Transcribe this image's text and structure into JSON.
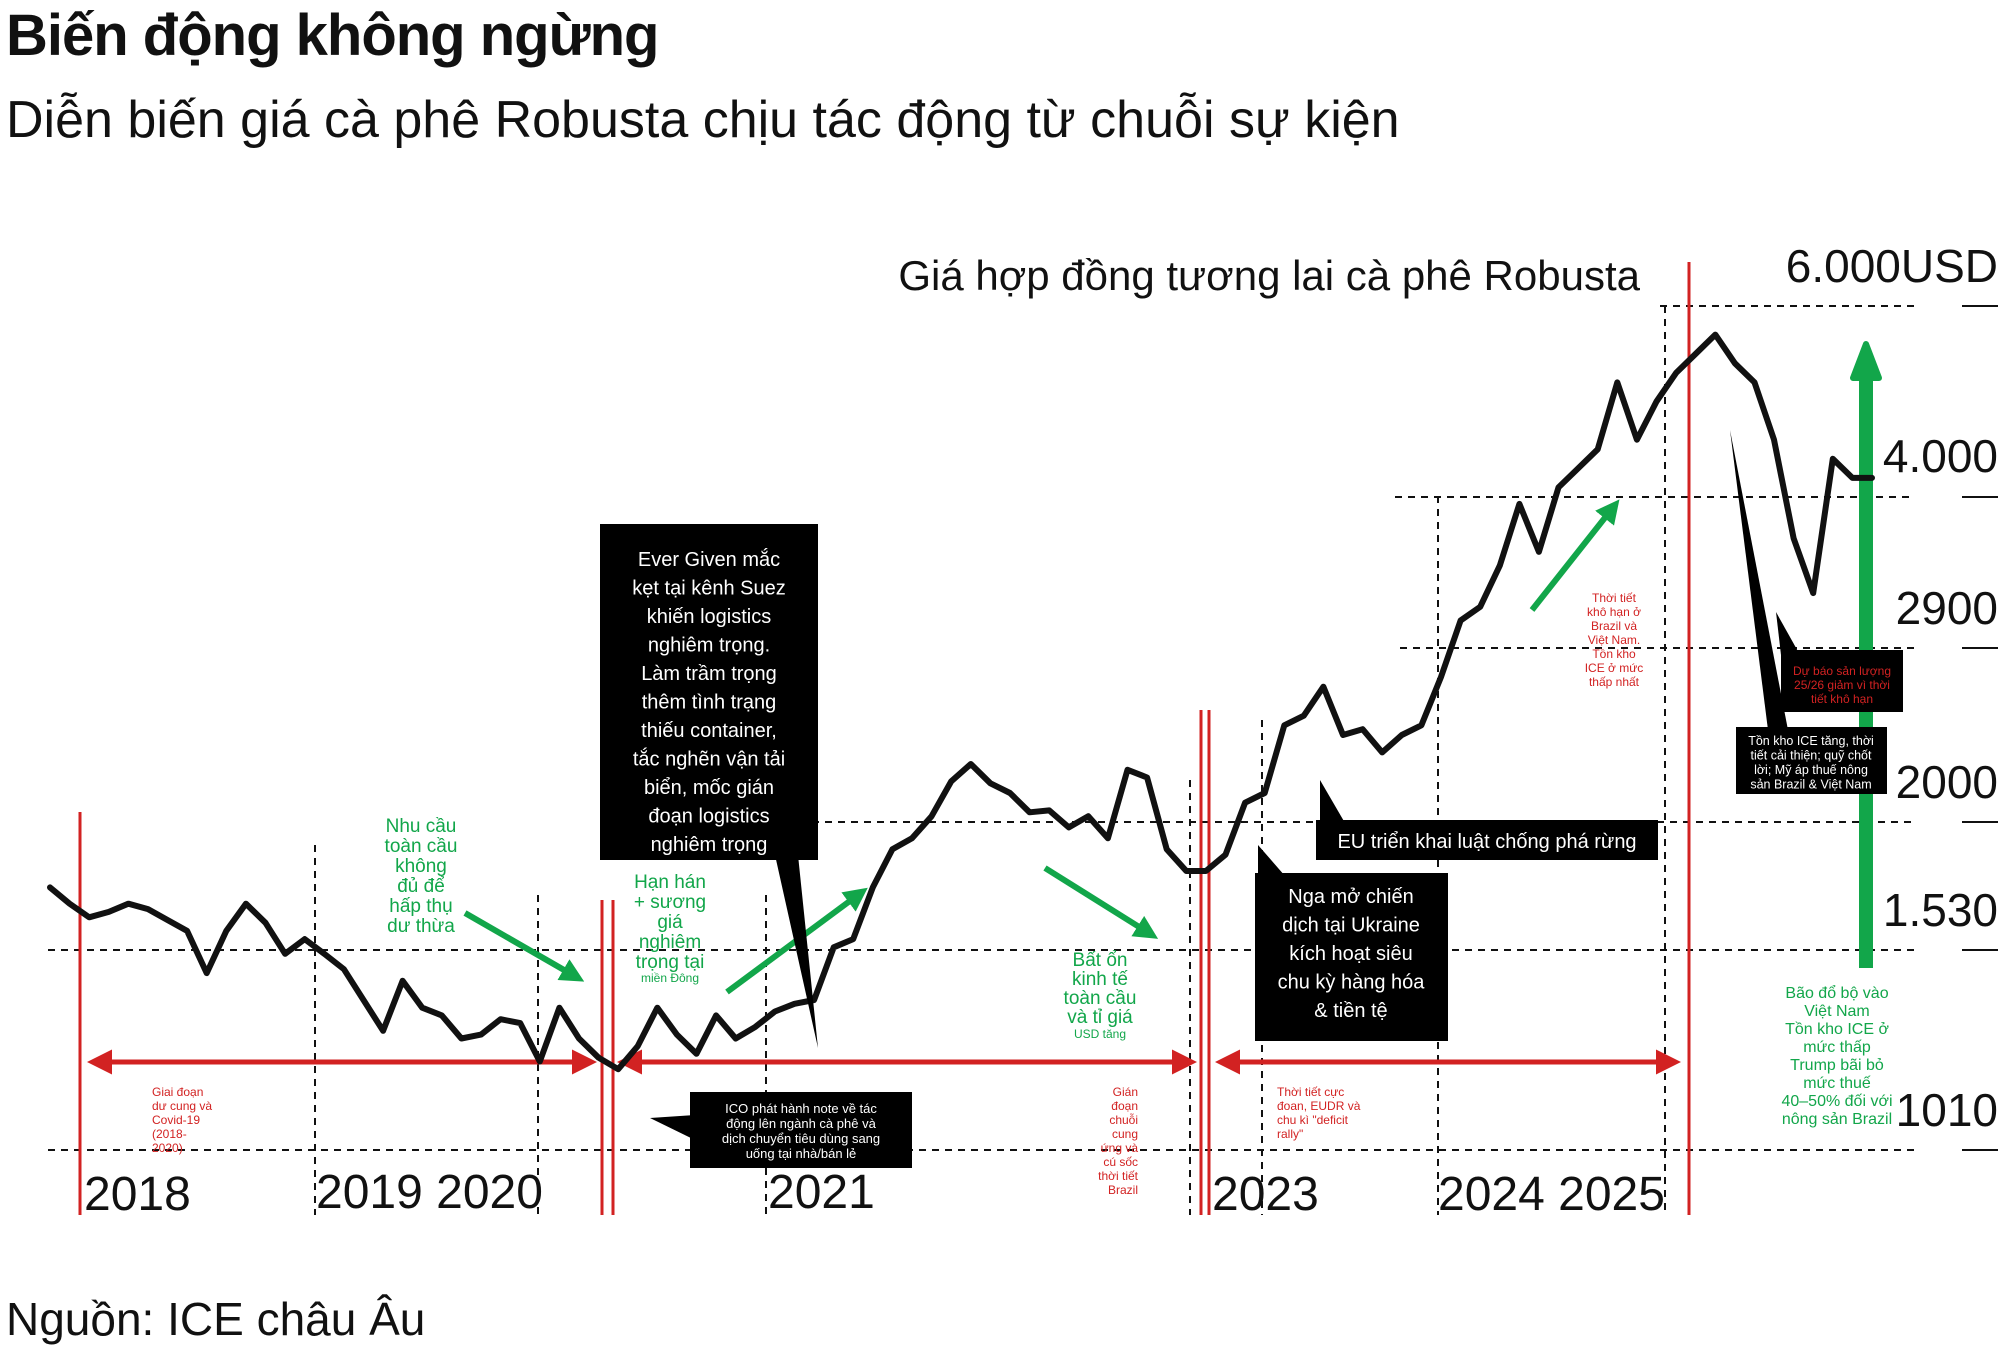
{
  "header": {
    "title": "Biến động không ngừng",
    "subtitle": "Diễn biến giá cà phê Robusta chịu tác động từ chuỗi sự kiện"
  },
  "footer": {
    "source": "Nguồn: ICE châu Âu"
  },
  "colors": {
    "line": "#111111",
    "red": "#d22222",
    "green": "#12a64a",
    "box": "#000000"
  },
  "chart_data": {
    "type": "line",
    "title": "Giá hợp đồng tương lai cà phê Robusta",
    "y_labels": [
      "6.000USD",
      "4.000",
      "2900",
      "2000",
      "1.530",
      "1010"
    ],
    "y_levels": [
      6000,
      4000,
      2900,
      2000,
      1530,
      1010
    ],
    "x_labels": [
      "2018",
      "2019 2020",
      "2021",
      "2023",
      "2024 2025"
    ],
    "x_range": [
      "2018-01",
      "2025-10"
    ],
    "series": [
      {
        "values": [
          [
            "2018-01",
            1760
          ],
          [
            "2018-02",
            1700
          ],
          [
            "2018-03",
            1650
          ],
          [
            "2018-04",
            1670
          ],
          [
            "2018-05",
            1700
          ],
          [
            "2018-06",
            1680
          ],
          [
            "2018-07",
            1640
          ],
          [
            "2018-08",
            1600
          ],
          [
            "2018-09",
            1470
          ],
          [
            "2018-10",
            1600
          ],
          [
            "2018-11",
            1700
          ],
          [
            "2018-12",
            1630
          ],
          [
            "2019-01",
            1520
          ],
          [
            "2019-02",
            1570
          ],
          [
            "2019-03",
            1520
          ],
          [
            "2019-04",
            1480
          ],
          [
            "2019-05",
            1400
          ],
          [
            "2019-06",
            1320
          ],
          [
            "2019-07",
            1450
          ],
          [
            "2019-08",
            1380
          ],
          [
            "2019-09",
            1360
          ],
          [
            "2019-10",
            1300
          ],
          [
            "2019-11",
            1310
          ],
          [
            "2019-12",
            1350
          ],
          [
            "2020-01",
            1340
          ],
          [
            "2020-02",
            1240
          ],
          [
            "2020-03",
            1380
          ],
          [
            "2020-04",
            1300
          ],
          [
            "2020-05",
            1250
          ],
          [
            "2020-06",
            1220
          ],
          [
            "2020-07",
            1280
          ],
          [
            "2020-08",
            1380
          ],
          [
            "2020-09",
            1310
          ],
          [
            "2020-10",
            1260
          ],
          [
            "2020-11",
            1360
          ],
          [
            "2020-12",
            1300
          ],
          [
            "2021-01",
            1330
          ],
          [
            "2021-02",
            1370
          ],
          [
            "2021-03",
            1390
          ],
          [
            "2021-04",
            1400
          ],
          [
            "2021-05",
            1540
          ],
          [
            "2021-06",
            1570
          ],
          [
            "2021-07",
            1760
          ],
          [
            "2021-08",
            1900
          ],
          [
            "2021-09",
            1940
          ],
          [
            "2021-10",
            2030
          ],
          [
            "2021-11",
            2210
          ],
          [
            "2021-12",
            2300
          ],
          [
            "2022-01",
            2200
          ],
          [
            "2022-02",
            2150
          ],
          [
            "2022-03",
            2050
          ],
          [
            "2022-04",
            2060
          ],
          [
            "2022-05",
            1980
          ],
          [
            "2022-06",
            2030
          ],
          [
            "2022-07",
            1940
          ],
          [
            "2022-08",
            2270
          ],
          [
            "2022-09",
            2230
          ],
          [
            "2022-10",
            1900
          ],
          [
            "2022-11",
            1820
          ],
          [
            "2022-12",
            1820
          ],
          [
            "2023-01",
            1880
          ],
          [
            "2023-02",
            2100
          ],
          [
            "2023-03",
            2150
          ],
          [
            "2023-04",
            2500
          ],
          [
            "2023-05",
            2550
          ],
          [
            "2023-06",
            2700
          ],
          [
            "2023-07",
            2450
          ],
          [
            "2023-08",
            2480
          ],
          [
            "2023-09",
            2360
          ],
          [
            "2023-10",
            2450
          ],
          [
            "2023-11",
            2500
          ],
          [
            "2023-12",
            2750
          ],
          [
            "2024-01",
            3100
          ],
          [
            "2024-02",
            3200
          ],
          [
            "2024-03",
            3500
          ],
          [
            "2024-04",
            3950
          ],
          [
            "2024-05",
            3600
          ],
          [
            "2024-06",
            4100
          ],
          [
            "2024-07",
            4300
          ],
          [
            "2024-08",
            4500
          ],
          [
            "2024-09",
            5200
          ],
          [
            "2024-10",
            4600
          ],
          [
            "2024-11",
            5000
          ],
          [
            "2024-12",
            5300
          ],
          [
            "2025-01",
            5500
          ],
          [
            "2025-02",
            5700
          ],
          [
            "2025-03",
            5400
          ],
          [
            "2025-04",
            5200
          ],
          [
            "2025-05",
            4600
          ],
          [
            "2025-06",
            3700
          ],
          [
            "2025-07",
            3300
          ],
          [
            "2025-08",
            4400
          ],
          [
            "2025-09",
            4200
          ],
          [
            "2025-10",
            4200
          ]
        ]
      }
    ],
    "legend": "none",
    "grid": "dashed guide lines at labelled levels"
  },
  "annotations": {
    "green": [
      {
        "lines": [
          "Nhu cầu",
          "toàn cầu",
          "không",
          "đủ để",
          "hấp thụ",
          "dư thừa"
        ]
      },
      {
        "lines": [
          "Hạn hán",
          "+ sương",
          "giá",
          "nghiêm",
          "trọng tại"
        ],
        "small": "miền Đông"
      },
      {
        "lines": [
          "Bất ổn",
          "kinh tế",
          "toàn cầu",
          "và tỉ giá"
        ],
        "small": "USD tăng"
      },
      {
        "lines": [
          "Bão đổ bộ vào",
          "Việt Nam",
          "Tồn kho ICE ở",
          "mức thấp",
          "Trump bãi bỏ",
          "mức thuế",
          "40–50% đối với",
          "nông sản Brazil"
        ]
      }
    ],
    "red": [
      {
        "lines": [
          "Giai đoạn",
          "dư cung và",
          "Covid-19",
          "(2018-",
          "2020)"
        ]
      },
      {
        "lines": [
          "Gián",
          "đoạn",
          "chuỗi",
          "cung",
          "ứng và",
          "cú sốc",
          "thời tiết",
          "Brazil"
        ]
      },
      {
        "lines": [
          "Thời tiết cực",
          "đoan, EUDR và",
          "chu kì \"deficit",
          "rally\""
        ]
      },
      {
        "lines": [
          "Thời tiết",
          "khô hạn ở",
          "Brazil và",
          "Việt Nam.",
          "Tồn kho",
          "ICE ở mức",
          "thấp nhất"
        ]
      },
      {
        "lines": [
          "Dự báo sản lượng",
          "25/26 giảm vì thời",
          "tiết khô hạn"
        ]
      }
    ],
    "boxes": [
      {
        "lines": [
          "Ever Given mắc",
          "kẹt tại kênh Suez",
          "khiến logistics",
          "nghiêm trọng.",
          "Làm trầm trọng",
          "thêm tình trạng",
          "thiếu container,",
          "tắc nghẽn vận tải",
          "biển, mốc gián",
          "đoạn logistics",
          "nghiêm trọng"
        ]
      },
      {
        "lines": [
          "ICO phát hành note về tác",
          "động lên ngành cà phê và",
          "dịch chuyển tiêu dùng sang",
          "uống tại nhà/bán lẻ"
        ]
      },
      {
        "lines": [
          "EU triển khai luật chống phá rừng"
        ]
      },
      {
        "lines": [
          "Nga mở chiến",
          "dịch tại Ukraine",
          "kích hoạt siêu",
          "chu kỳ hàng hóa",
          "& tiền tệ"
        ]
      },
      {
        "lines": [
          "Tồn kho ICE tăng, thời",
          "tiết cải thiện; quỹ chốt",
          "lời; Mỹ áp thuế nông",
          "sản Brazil & Việt Nam"
        ]
      }
    ]
  }
}
